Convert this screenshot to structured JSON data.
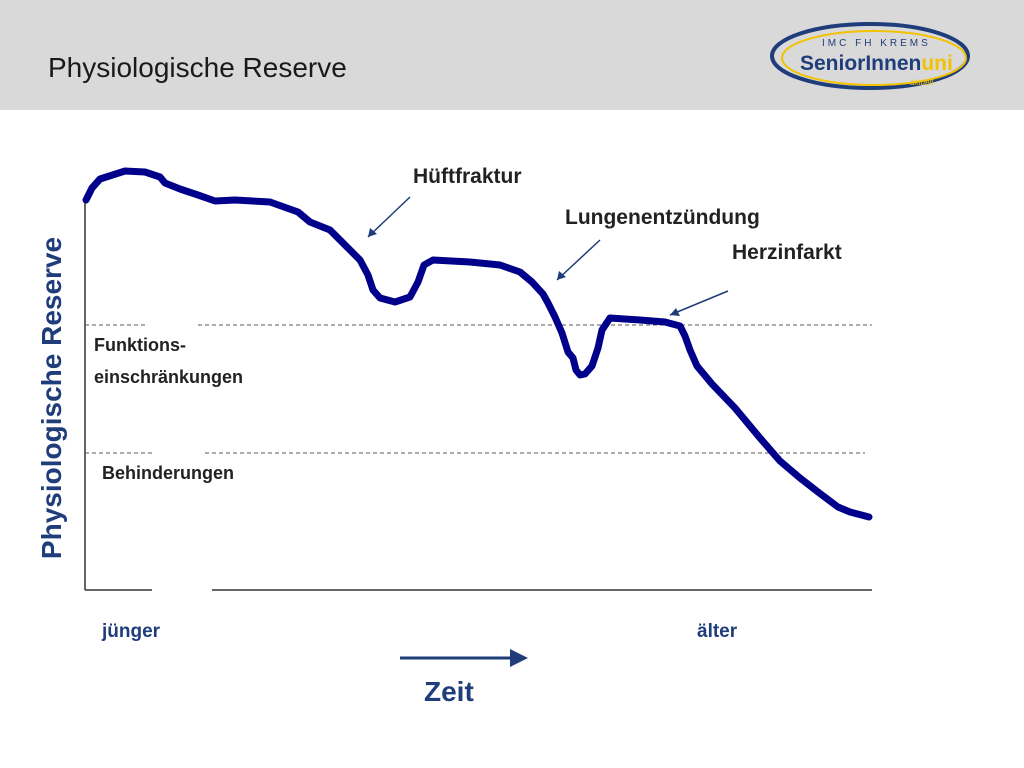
{
  "header": {
    "title": "Physiologische Reserve",
    "logo": {
      "top_text": "IMC FH KREMS",
      "main_text_a": "SeniorInnen",
      "main_text_b": "uni",
      "sub_text": "aktuell"
    }
  },
  "diagram": {
    "ylabel": "Physiologische Reserve",
    "time_label": "Zeit",
    "start_label": "jünger",
    "end_label": "älter",
    "zone_labels": {
      "functional_line1": "Funktions-",
      "functional_line2": "einschränkungen",
      "disability": "Behinderungen"
    },
    "events": [
      "Hüftfraktur",
      "Lungenentzündung",
      "Herzinfarkt"
    ],
    "colors": {
      "curve": "#00008b",
      "accent": "#1f3d7a",
      "logo_yellow": "#f2c200"
    }
  }
}
